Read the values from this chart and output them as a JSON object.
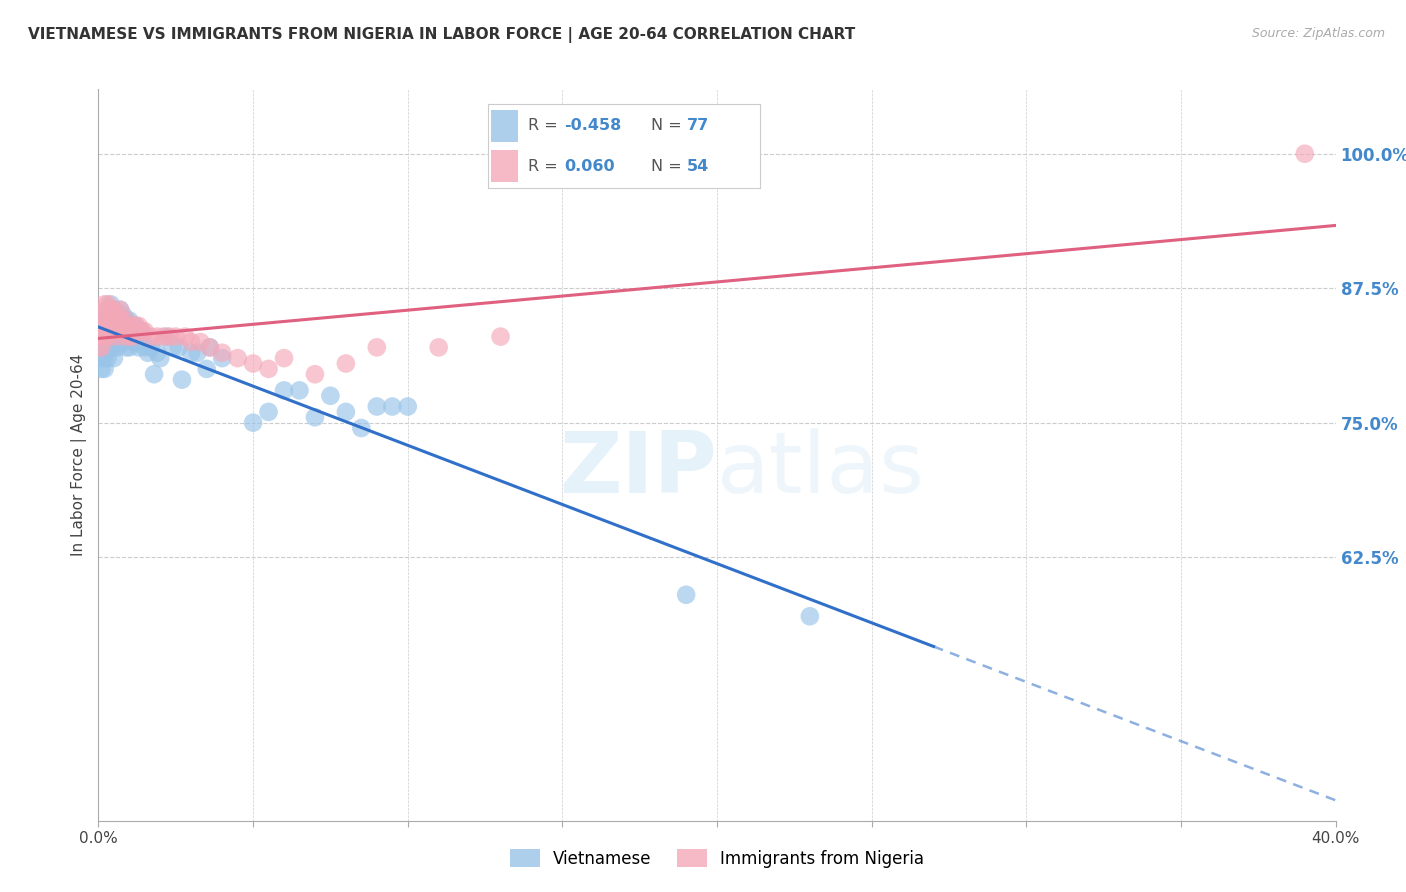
{
  "title": "VIETNAMESE VS IMMIGRANTS FROM NIGERIA IN LABOR FORCE | AGE 20-64 CORRELATION CHART",
  "source": "Source: ZipAtlas.com",
  "ylabel": "In Labor Force | Age 20-64",
  "yticks": [
    0.625,
    0.75,
    0.875,
    1.0
  ],
  "ytick_labels": [
    "62.5%",
    "75.0%",
    "87.5%",
    "100.0%"
  ],
  "xlim": [
    0.0,
    0.4
  ],
  "ylim": [
    0.38,
    1.06
  ],
  "legend_r_blue": "-0.458",
  "legend_n_blue": "77",
  "legend_r_pink": "0.060",
  "legend_n_pink": "54",
  "blue_color": "#99c4e8",
  "pink_color": "#f4a8b8",
  "line_blue": "#3070c8",
  "line_pink": "#e06080",
  "watermark_zip": "ZIP",
  "watermark_atlas": "atlas",
  "viet_x": [
    0.0,
    0.001,
    0.001,
    0.001,
    0.001,
    0.001,
    0.002,
    0.002,
    0.002,
    0.002,
    0.002,
    0.003,
    0.003,
    0.003,
    0.003,
    0.003,
    0.004,
    0.004,
    0.004,
    0.004,
    0.004,
    0.005,
    0.005,
    0.005,
    0.005,
    0.005,
    0.006,
    0.006,
    0.006,
    0.006,
    0.007,
    0.007,
    0.007,
    0.007,
    0.008,
    0.008,
    0.008,
    0.009,
    0.009,
    0.009,
    0.01,
    0.01,
    0.01,
    0.011,
    0.011,
    0.012,
    0.012,
    0.013,
    0.014,
    0.015,
    0.016,
    0.017,
    0.018,
    0.019,
    0.02,
    0.022,
    0.024,
    0.026,
    0.027,
    0.03,
    0.032,
    0.035,
    0.036,
    0.04,
    0.05,
    0.055,
    0.06,
    0.065,
    0.07,
    0.075,
    0.08,
    0.085,
    0.09,
    0.095,
    0.1,
    0.19,
    0.23
  ],
  "viet_y": [
    0.83,
    0.85,
    0.83,
    0.82,
    0.81,
    0.8,
    0.84,
    0.83,
    0.82,
    0.81,
    0.8,
    0.85,
    0.84,
    0.83,
    0.82,
    0.81,
    0.86,
    0.85,
    0.84,
    0.83,
    0.82,
    0.855,
    0.84,
    0.835,
    0.82,
    0.81,
    0.85,
    0.84,
    0.83,
    0.82,
    0.855,
    0.845,
    0.835,
    0.825,
    0.85,
    0.84,
    0.825,
    0.845,
    0.835,
    0.82,
    0.845,
    0.835,
    0.82,
    0.84,
    0.825,
    0.84,
    0.825,
    0.82,
    0.835,
    0.82,
    0.815,
    0.82,
    0.795,
    0.815,
    0.81,
    0.83,
    0.82,
    0.82,
    0.79,
    0.815,
    0.815,
    0.8,
    0.82,
    0.81,
    0.75,
    0.76,
    0.78,
    0.78,
    0.755,
    0.775,
    0.76,
    0.745,
    0.765,
    0.765,
    0.765,
    0.59,
    0.57
  ],
  "nigeria_x": [
    0.0,
    0.001,
    0.001,
    0.001,
    0.001,
    0.002,
    0.002,
    0.002,
    0.002,
    0.003,
    0.003,
    0.003,
    0.003,
    0.004,
    0.004,
    0.004,
    0.005,
    0.005,
    0.005,
    0.006,
    0.006,
    0.007,
    0.007,
    0.008,
    0.008,
    0.009,
    0.009,
    0.01,
    0.01,
    0.011,
    0.012,
    0.013,
    0.014,
    0.015,
    0.017,
    0.019,
    0.021,
    0.023,
    0.025,
    0.028,
    0.03,
    0.033,
    0.036,
    0.04,
    0.045,
    0.05,
    0.055,
    0.06,
    0.07,
    0.08,
    0.09,
    0.11,
    0.13,
    0.39
  ],
  "nigeria_y": [
    0.82,
    0.85,
    0.84,
    0.83,
    0.82,
    0.86,
    0.85,
    0.84,
    0.83,
    0.86,
    0.855,
    0.84,
    0.83,
    0.855,
    0.845,
    0.835,
    0.855,
    0.84,
    0.83,
    0.85,
    0.84,
    0.855,
    0.845,
    0.84,
    0.83,
    0.845,
    0.835,
    0.84,
    0.83,
    0.83,
    0.84,
    0.84,
    0.835,
    0.835,
    0.83,
    0.83,
    0.83,
    0.83,
    0.83,
    0.83,
    0.825,
    0.825,
    0.82,
    0.815,
    0.81,
    0.805,
    0.8,
    0.81,
    0.795,
    0.805,
    0.82,
    0.82,
    0.83,
    1.0
  ],
  "grid_color": "#cccccc",
  "tick_color": "#4488cc"
}
